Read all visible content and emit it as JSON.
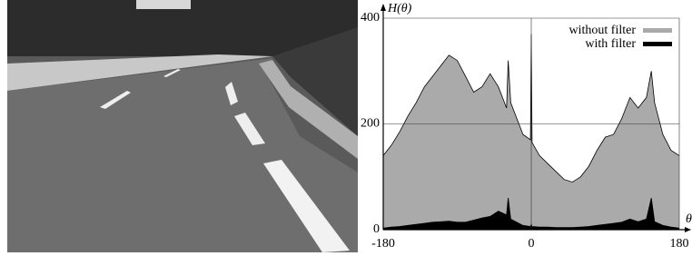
{
  "chart_data": {
    "type": "area",
    "ylabel": "H(θ)",
    "xlabel": "θ",
    "x": [
      -180,
      -170,
      -160,
      -150,
      -140,
      -130,
      -120,
      -110,
      -100,
      -90,
      -80,
      -70,
      -60,
      -50,
      -40,
      -30,
      -28,
      -25,
      -10,
      -1,
      0,
      1,
      10,
      20,
      30,
      40,
      50,
      60,
      70,
      80,
      90,
      100,
      110,
      120,
      130,
      140,
      146,
      150,
      160,
      170,
      180
    ],
    "series": [
      {
        "name": "without filter",
        "color": "#aaaaaa",
        "values": [
          140,
          160,
          185,
          215,
          240,
          270,
          290,
          310,
          330,
          320,
          290,
          260,
          270,
          295,
          270,
          230,
          320,
          240,
          180,
          170,
          370,
          165,
          140,
          125,
          110,
          95,
          90,
          100,
          120,
          150,
          175,
          180,
          210,
          250,
          230,
          250,
          300,
          240,
          180,
          150,
          140
        ]
      },
      {
        "name": "with filter",
        "color": "#000000",
        "values": [
          3,
          5,
          6,
          8,
          10,
          12,
          14,
          15,
          16,
          14,
          14,
          18,
          22,
          25,
          35,
          28,
          60,
          20,
          8,
          6,
          10,
          6,
          5,
          5,
          4,
          4,
          4,
          5,
          6,
          8,
          10,
          12,
          14,
          20,
          15,
          20,
          60,
          15,
          8,
          5,
          3
        ]
      }
    ],
    "xlim": [
      -180,
      180
    ],
    "ylim": [
      0,
      400
    ],
    "xticks": [
      -180,
      0,
      180
    ],
    "yticks": [
      0,
      200,
      400
    ],
    "grid": true,
    "legend": "top-right"
  }
}
